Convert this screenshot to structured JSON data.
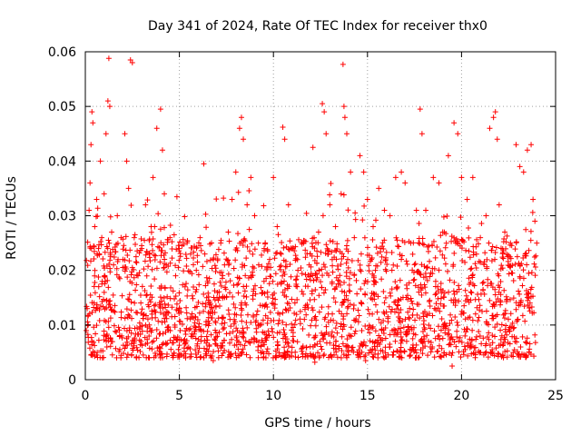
{
  "chart_data": {
    "type": "scatter",
    "title": "Day 341 of 2024, Rate Of TEC Index for receiver thx0",
    "xlabel": "GPS time / hours",
    "ylabel": "ROTI / TECUs",
    "xlim": [
      0,
      25
    ],
    "ylim": [
      0,
      0.06
    ],
    "xticks": [
      0,
      5,
      10,
      15,
      20,
      25
    ],
    "xtick_labels": [
      "0",
      "5",
      "10",
      "15",
      "20",
      "25"
    ],
    "yticks": [
      0,
      0.01,
      0.02,
      0.03,
      0.04,
      0.05,
      0.06
    ],
    "ytick_labels": [
      "0",
      "0.01",
      "0.02",
      "0.03",
      "0.04",
      "0.05",
      "0.06"
    ],
    "grid": true,
    "marker": "plus",
    "color": "#ff0000",
    "series": [
      {
        "name": "ROTI",
        "points": [
          [
            0.05,
            0.009
          ],
          [
            0.1,
            0.013
          ],
          [
            0.2,
            0.031
          ],
          [
            0.25,
            0.036
          ],
          [
            0.3,
            0.043
          ],
          [
            0.35,
            0.049
          ],
          [
            0.4,
            0.047
          ],
          [
            0.5,
            0.028
          ],
          [
            0.6,
            0.033
          ],
          [
            0.7,
            0.024
          ],
          [
            0.8,
            0.04
          ],
          [
            0.9,
            0.018
          ],
          [
            1.0,
            0.034
          ],
          [
            1.1,
            0.045
          ],
          [
            1.2,
            0.051
          ],
          [
            1.25,
            0.0588
          ],
          [
            1.3,
            0.05
          ],
          [
            1.4,
            0.027
          ],
          [
            1.5,
            0.021
          ],
          [
            1.7,
            0.03
          ],
          [
            1.9,
            0.026
          ],
          [
            2.0,
            0.022
          ],
          [
            2.1,
            0.045
          ],
          [
            2.2,
            0.04
          ],
          [
            2.3,
            0.035
          ],
          [
            2.4,
            0.0585
          ],
          [
            2.5,
            0.058
          ],
          [
            2.6,
            0.026
          ],
          [
            2.8,
            0.019
          ],
          [
            3.0,
            0.024
          ],
          [
            3.2,
            0.032
          ],
          [
            3.4,
            0.023
          ],
          [
            3.5,
            0.028
          ],
          [
            3.6,
            0.037
          ],
          [
            3.8,
            0.046
          ],
          [
            4.0,
            0.0495
          ],
          [
            4.1,
            0.042
          ],
          [
            4.2,
            0.034
          ],
          [
            4.3,
            0.021
          ],
          [
            4.5,
            0.026
          ],
          [
            4.8,
            0.019
          ],
          [
            5.0,
            0.024
          ],
          [
            5.3,
            0.017
          ],
          [
            5.6,
            0.023
          ],
          [
            5.9,
            0.02
          ],
          [
            6.1,
            0.026
          ],
          [
            6.3,
            0.0395
          ],
          [
            6.5,
            0.018
          ],
          [
            6.8,
            0.022
          ],
          [
            7.0,
            0.015
          ],
          [
            7.2,
            0.025
          ],
          [
            7.4,
            0.021
          ],
          [
            7.6,
            0.027
          ],
          [
            7.8,
            0.033
          ],
          [
            8.0,
            0.038
          ],
          [
            8.2,
            0.046
          ],
          [
            8.3,
            0.048
          ],
          [
            8.4,
            0.044
          ],
          [
            8.6,
            0.032
          ],
          [
            8.8,
            0.037
          ],
          [
            9.0,
            0.03
          ],
          [
            9.2,
            0.025
          ],
          [
            9.5,
            0.018
          ],
          [
            9.8,
            0.022
          ],
          [
            10.0,
            0.037
          ],
          [
            10.2,
            0.028
          ],
          [
            10.5,
            0.0462
          ],
          [
            10.6,
            0.044
          ],
          [
            10.8,
            0.032
          ],
          [
            11.0,
            0.024
          ],
          [
            11.3,
            0.02
          ],
          [
            11.6,
            0.025
          ],
          [
            11.9,
            0.021
          ],
          [
            12.1,
            0.0425
          ],
          [
            12.4,
            0.027
          ],
          [
            12.6,
            0.0505
          ],
          [
            12.7,
            0.049
          ],
          [
            12.8,
            0.045
          ],
          [
            13.0,
            0.032
          ],
          [
            13.3,
            0.028
          ],
          [
            13.6,
            0.034
          ],
          [
            13.7,
            0.0577
          ],
          [
            13.75,
            0.05
          ],
          [
            13.8,
            0.048
          ],
          [
            13.9,
            0.045
          ],
          [
            14.1,
            0.038
          ],
          [
            14.3,
            0.026
          ],
          [
            14.6,
            0.041
          ],
          [
            14.8,
            0.038
          ],
          [
            15.0,
            0.033
          ],
          [
            15.3,
            0.028
          ],
          [
            15.6,
            0.035
          ],
          [
            15.9,
            0.031
          ],
          [
            16.2,
            0.03
          ],
          [
            16.5,
            0.037
          ],
          [
            16.8,
            0.038
          ],
          [
            17.0,
            0.036
          ],
          [
            17.3,
            0.025
          ],
          [
            17.6,
            0.031
          ],
          [
            17.8,
            0.0495
          ],
          [
            17.9,
            0.045
          ],
          [
            18.1,
            0.031
          ],
          [
            18.5,
            0.037
          ],
          [
            18.8,
            0.036
          ],
          [
            19.0,
            0.027
          ],
          [
            19.3,
            0.041
          ],
          [
            19.6,
            0.047
          ],
          [
            19.8,
            0.045
          ],
          [
            20.0,
            0.037
          ],
          [
            20.3,
            0.033
          ],
          [
            20.6,
            0.037
          ],
          [
            21.0,
            0.026
          ],
          [
            21.3,
            0.03
          ],
          [
            21.5,
            0.046
          ],
          [
            21.7,
            0.048
          ],
          [
            21.8,
            0.049
          ],
          [
            21.9,
            0.044
          ],
          [
            22.0,
            0.032
          ],
          [
            22.3,
            0.027
          ],
          [
            22.6,
            0.025
          ],
          [
            22.9,
            0.043
          ],
          [
            23.1,
            0.039
          ],
          [
            23.3,
            0.038
          ],
          [
            23.5,
            0.042
          ],
          [
            23.7,
            0.043
          ],
          [
            23.8,
            0.033
          ],
          [
            23.9,
            0.029
          ],
          [
            24.0,
            0.025
          ],
          [
            0.6,
            0.0045
          ],
          [
            3.4,
            0.004
          ],
          [
            6.8,
            0.0035
          ],
          [
            9.6,
            0.004
          ],
          [
            12.2,
            0.0032
          ],
          [
            14.9,
            0.0035
          ],
          [
            17.7,
            0.004
          ],
          [
            19.5,
            0.0025
          ],
          [
            22.2,
            0.0045
          ],
          [
            23.6,
            0.005
          ]
        ]
      }
    ]
  }
}
